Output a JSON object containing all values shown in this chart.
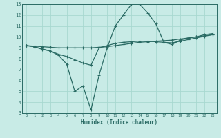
{
  "xlabel": "Humidex (Indice chaleur)",
  "xlim": [
    -0.5,
    23.5
  ],
  "ylim": [
    3,
    13
  ],
  "yticks": [
    3,
    4,
    5,
    6,
    7,
    8,
    9,
    10,
    11,
    12,
    13
  ],
  "xticks": [
    0,
    1,
    2,
    3,
    4,
    5,
    6,
    7,
    8,
    9,
    10,
    11,
    12,
    13,
    14,
    15,
    16,
    17,
    18,
    19,
    20,
    21,
    22,
    23
  ],
  "background_color": "#c8ebe6",
  "grid_color": "#a8d8d0",
  "line_color": "#2a6b64",
  "line1_x": [
    0,
    1,
    2,
    3,
    4,
    5,
    6,
    7,
    8,
    9,
    10,
    11,
    12,
    13,
    14,
    15,
    16,
    17,
    18,
    19,
    20,
    21,
    22,
    23
  ],
  "line1_y": [
    9.2,
    9.1,
    8.9,
    8.7,
    8.3,
    7.5,
    5.0,
    5.5,
    3.3,
    6.5,
    9.0,
    11.0,
    12.0,
    13.0,
    13.0,
    12.2,
    11.2,
    9.5,
    9.3,
    9.7,
    9.9,
    10.0,
    10.2,
    10.3
  ],
  "line2_x": [
    0,
    1,
    2,
    3,
    4,
    5,
    6,
    7,
    8,
    9,
    10,
    11,
    12,
    13,
    14,
    15,
    16,
    17,
    18,
    19,
    20,
    21,
    22,
    23
  ],
  "line2_y": [
    9.2,
    9.15,
    9.1,
    9.05,
    9.0,
    9.0,
    9.0,
    9.0,
    9.0,
    9.05,
    9.1,
    9.2,
    9.3,
    9.4,
    9.5,
    9.55,
    9.6,
    9.65,
    9.7,
    9.8,
    9.9,
    10.0,
    10.1,
    10.2
  ],
  "line3_x": [
    0,
    1,
    2,
    3,
    4,
    5,
    6,
    7,
    8,
    9,
    10,
    11,
    12,
    13,
    14,
    15,
    16,
    17,
    18,
    19,
    20,
    21,
    22,
    23
  ],
  "line3_y": [
    9.2,
    9.1,
    8.85,
    8.7,
    8.4,
    8.2,
    7.9,
    7.6,
    7.4,
    9.0,
    9.2,
    9.4,
    9.5,
    9.55,
    9.6,
    9.6,
    9.55,
    9.5,
    9.45,
    9.6,
    9.75,
    9.9,
    10.05,
    10.2
  ]
}
